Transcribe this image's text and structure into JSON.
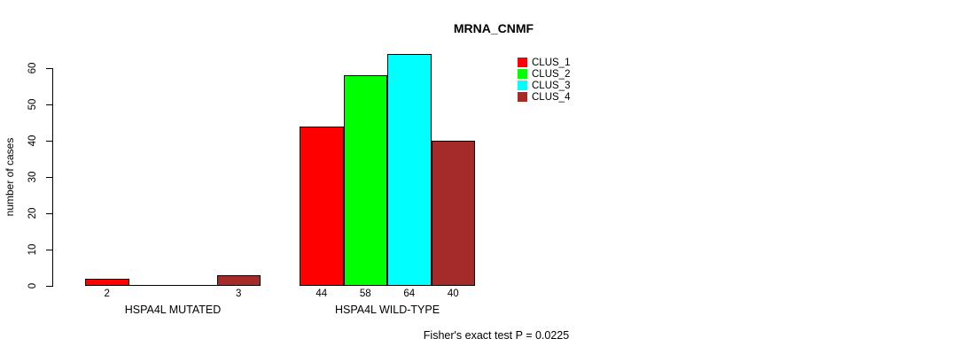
{
  "chart_data": {
    "type": "bar",
    "title": "MRNA_CNMF",
    "ylabel": "number of cases",
    "ylim": [
      0,
      60
    ],
    "yticks": [
      0,
      10,
      20,
      30,
      40,
      50,
      60
    ],
    "grid": false,
    "legend_position": "top-right",
    "groups": [
      {
        "label": "HSPA4L MUTATED",
        "bar_labels": [
          "2",
          "",
          "",
          "3"
        ]
      },
      {
        "label": "HSPA4L WILD-TYPE",
        "bar_labels": [
          "44",
          "58",
          "64",
          "40"
        ]
      }
    ],
    "series": [
      {
        "name": "CLUS_1",
        "color": "#ff0000",
        "values": [
          2,
          44
        ]
      },
      {
        "name": "CLUS_2",
        "color": "#00ff00",
        "values": [
          0,
          58
        ]
      },
      {
        "name": "CLUS_3",
        "color": "#00ffff",
        "values": [
          0,
          64
        ]
      },
      {
        "name": "CLUS_4",
        "color": "#a52a2a",
        "values": [
          3,
          40
        ]
      }
    ],
    "annotation": "Fisher's exact test P = 0.0225"
  },
  "colors": {
    "axis": "#000000",
    "text": "#000000",
    "background": "#ffffff"
  }
}
